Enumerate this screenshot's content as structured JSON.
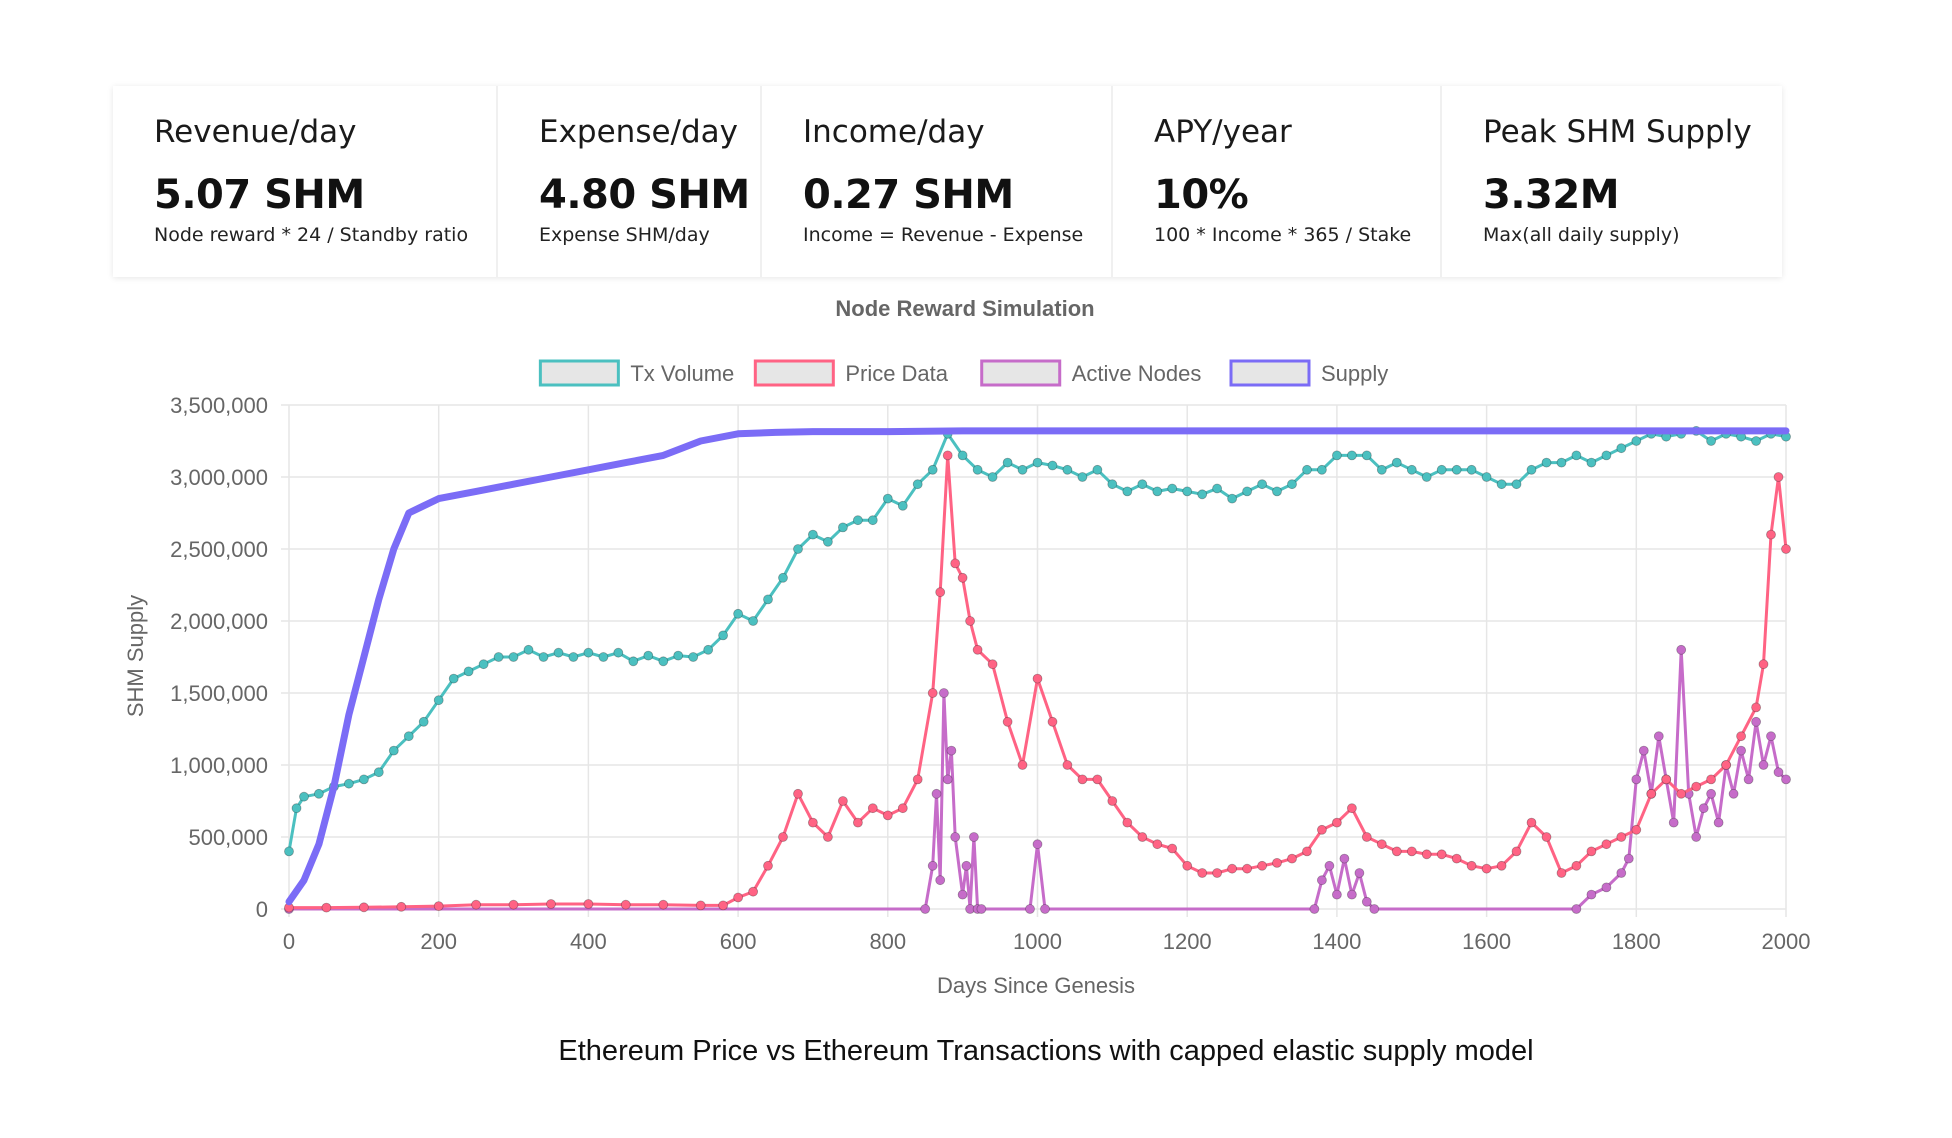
{
  "stats": [
    {
      "label": "Revenue/day",
      "value": "5.07 SHM",
      "desc": "Node reward * 24 / Standby ratio"
    },
    {
      "label": "Expense/day",
      "value": "4.80 SHM",
      "desc": "Expense SHM/day"
    },
    {
      "label": "Income/day",
      "value": "0.27 SHM",
      "desc": "Income = Revenue - Expense"
    },
    {
      "label": "APY/year",
      "value": "10%",
      "desc": "100 * Income * 365 / Stake"
    },
    {
      "label": "Peak SHM Supply",
      "value": "3.32M",
      "desc": "Max(all daily supply)"
    }
  ],
  "caption": "Ethereum Price vs Ethereum Transactions with capped elastic supply model",
  "chart_data": {
    "type": "line",
    "title": "Node Reward Simulation",
    "xlabel": "Days Since Genesis",
    "ylabel": "SHM Supply",
    "xlim": [
      0,
      2000
    ],
    "ylim": [
      0,
      3500000
    ],
    "x_ticks": [
      "0",
      "200",
      "400",
      "600",
      "800",
      "1000",
      "1200",
      "1400",
      "1600",
      "1800",
      "2000"
    ],
    "y_ticks": [
      "0",
      "500,000",
      "1,000,000",
      "1,500,000",
      "2,000,000",
      "2,500,000",
      "3,000,000",
      "3,500,000"
    ],
    "grid": true,
    "legend_position": "top",
    "series": [
      {
        "name": "Tx Volume",
        "color": "#4bc0c0",
        "markers": true,
        "x": [
          0,
          10,
          20,
          40,
          60,
          80,
          100,
          120,
          140,
          160,
          180,
          200,
          220,
          240,
          260,
          280,
          300,
          320,
          340,
          360,
          380,
          400,
          420,
          440,
          460,
          480,
          500,
          520,
          540,
          560,
          580,
          600,
          620,
          640,
          660,
          680,
          700,
          720,
          740,
          760,
          780,
          800,
          820,
          840,
          860,
          880,
          900,
          920,
          940,
          960,
          980,
          1000,
          1020,
          1040,
          1060,
          1080,
          1100,
          1120,
          1140,
          1160,
          1180,
          1200,
          1220,
          1240,
          1260,
          1280,
          1300,
          1320,
          1340,
          1360,
          1380,
          1400,
          1420,
          1440,
          1460,
          1480,
          1500,
          1520,
          1540,
          1560,
          1580,
          1600,
          1620,
          1640,
          1660,
          1680,
          1700,
          1720,
          1740,
          1760,
          1780,
          1800,
          1820,
          1840,
          1860,
          1880,
          1900,
          1920,
          1940,
          1960,
          1980,
          2000
        ],
        "values": [
          400000,
          700000,
          780000,
          800000,
          850000,
          870000,
          900000,
          950000,
          1100000,
          1200000,
          1300000,
          1450000,
          1600000,
          1650000,
          1700000,
          1750000,
          1750000,
          1800000,
          1750000,
          1780000,
          1750000,
          1780000,
          1750000,
          1780000,
          1720000,
          1760000,
          1720000,
          1760000,
          1750000,
          1800000,
          1900000,
          2050000,
          2000000,
          2150000,
          2300000,
          2500000,
          2600000,
          2550000,
          2650000,
          2700000,
          2700000,
          2850000,
          2800000,
          2950000,
          3050000,
          3300000,
          3150000,
          3050000,
          3000000,
          3100000,
          3050000,
          3100000,
          3080000,
          3050000,
          3000000,
          3050000,
          2950000,
          2900000,
          2950000,
          2900000,
          2920000,
          2900000,
          2880000,
          2920000,
          2850000,
          2900000,
          2950000,
          2900000,
          2950000,
          3050000,
          3050000,
          3150000,
          3150000,
          3150000,
          3050000,
          3100000,
          3050000,
          3000000,
          3050000,
          3050000,
          3050000,
          3000000,
          2950000,
          2950000,
          3050000,
          3100000,
          3100000,
          3150000,
          3100000,
          3150000,
          3200000,
          3250000,
          3300000,
          3280000,
          3300000,
          3320000,
          3250000,
          3300000,
          3280000,
          3250000,
          3300000,
          3280000
        ]
      },
      {
        "name": "Price Data",
        "color": "#ff6384",
        "markers": true,
        "x": [
          0,
          50,
          100,
          150,
          200,
          250,
          300,
          350,
          400,
          450,
          500,
          550,
          580,
          600,
          620,
          640,
          660,
          680,
          700,
          720,
          740,
          760,
          780,
          800,
          820,
          840,
          860,
          870,
          880,
          890,
          900,
          910,
          920,
          940,
          960,
          980,
          1000,
          1020,
          1040,
          1060,
          1080,
          1100,
          1120,
          1140,
          1160,
          1180,
          1200,
          1220,
          1240,
          1260,
          1280,
          1300,
          1320,
          1340,
          1360,
          1380,
          1400,
          1420,
          1440,
          1460,
          1480,
          1500,
          1520,
          1540,
          1560,
          1580,
          1600,
          1620,
          1640,
          1660,
          1680,
          1700,
          1720,
          1740,
          1760,
          1780,
          1800,
          1820,
          1840,
          1860,
          1880,
          1900,
          1920,
          1940,
          1960,
          1970,
          1980,
          1990,
          2000
        ],
        "values": [
          10000,
          10000,
          12000,
          15000,
          20000,
          30000,
          30000,
          35000,
          35000,
          30000,
          30000,
          25000,
          25000,
          80000,
          120000,
          300000,
          500000,
          800000,
          600000,
          500000,
          750000,
          600000,
          700000,
          650000,
          700000,
          900000,
          1500000,
          2200000,
          3150000,
          2400000,
          2300000,
          2000000,
          1800000,
          1700000,
          1300000,
          1000000,
          1600000,
          1300000,
          1000000,
          900000,
          900000,
          750000,
          600000,
          500000,
          450000,
          420000,
          300000,
          250000,
          250000,
          280000,
          280000,
          300000,
          320000,
          350000,
          400000,
          550000,
          600000,
          700000,
          500000,
          450000,
          400000,
          400000,
          380000,
          380000,
          350000,
          300000,
          280000,
          300000,
          400000,
          600000,
          500000,
          250000,
          300000,
          400000,
          450000,
          500000,
          550000,
          800000,
          900000,
          800000,
          850000,
          900000,
          1000000,
          1200000,
          1400000,
          1700000,
          2600000,
          3000000,
          2500000
        ]
      },
      {
        "name": "Active Nodes",
        "color": "#c66cc9",
        "markers": true,
        "x": [
          0,
          850,
          860,
          865,
          870,
          875,
          880,
          885,
          890,
          900,
          905,
          910,
          915,
          920,
          925,
          990,
          1000,
          1010,
          1370,
          1380,
          1390,
          1400,
          1410,
          1420,
          1430,
          1440,
          1450,
          1720,
          1740,
          1760,
          1780,
          1790,
          1800,
          1810,
          1820,
          1830,
          1840,
          1850,
          1860,
          1870,
          1880,
          1890,
          1900,
          1910,
          1920,
          1930,
          1940,
          1950,
          1960,
          1970,
          1980,
          1990,
          2000
        ],
        "values": [
          0,
          0,
          300000,
          800000,
          200000,
          1500000,
          900000,
          1100000,
          500000,
          100000,
          300000,
          0,
          500000,
          0,
          0,
          0,
          450000,
          0,
          0,
          200000,
          300000,
          100000,
          350000,
          100000,
          250000,
          50000,
          0,
          0,
          100000,
          150000,
          250000,
          350000,
          900000,
          1100000,
          800000,
          1200000,
          900000,
          600000,
          1800000,
          800000,
          500000,
          700000,
          800000,
          600000,
          1000000,
          800000,
          1100000,
          900000,
          1300000,
          1000000,
          1200000,
          950000,
          900000
        ]
      },
      {
        "name": "Supply",
        "color": "#7b6cf6",
        "markers": false,
        "x": [
          0,
          20,
          40,
          60,
          80,
          100,
          120,
          140,
          160,
          180,
          200,
          250,
          300,
          350,
          400,
          450,
          500,
          550,
          600,
          650,
          700,
          800,
          900,
          1000,
          1200,
          1400,
          1600,
          1800,
          2000
        ],
        "values": [
          50000,
          200000,
          450000,
          850000,
          1350000,
          1750000,
          2150000,
          2500000,
          2750000,
          2800000,
          2850000,
          2900000,
          2950000,
          3000000,
          3050000,
          3100000,
          3150000,
          3250000,
          3300000,
          3310000,
          3315000,
          3315000,
          3320000,
          3320000,
          3320000,
          3320000,
          3320000,
          3320000,
          3320000
        ]
      }
    ]
  }
}
